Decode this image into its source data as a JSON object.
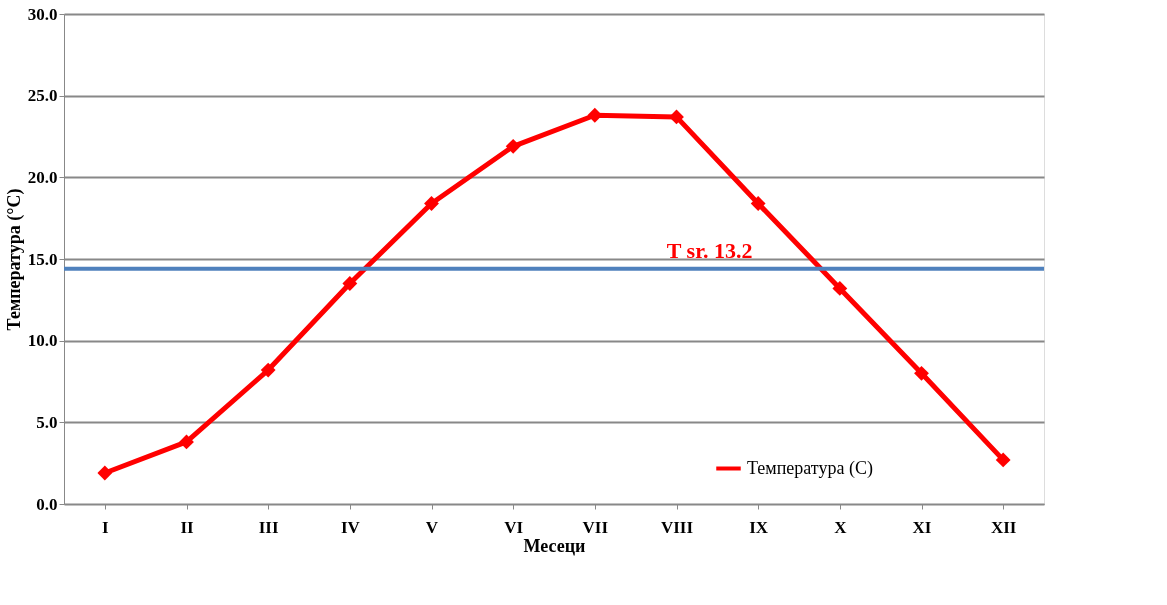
{
  "chart_data": {
    "type": "line",
    "xlabel": "Месеци",
    "ylabel": "Температура (°C)",
    "categories": [
      "I",
      "II",
      "III",
      "IV",
      "V",
      "VI",
      "VII",
      "VIII",
      "IX",
      "X",
      "XI",
      "XII"
    ],
    "series": [
      {
        "name": "Температура (C)",
        "color": "#ff0000",
        "values": [
          1.9,
          3.8,
          8.2,
          13.5,
          18.4,
          21.9,
          23.8,
          23.7,
          18.4,
          13.2,
          8.0,
          2.7
        ]
      }
    ],
    "ylim": [
      0,
      30
    ],
    "yticks": [
      {
        "value": 0,
        "label": "0.0"
      },
      {
        "value": 5,
        "label": "5.0"
      },
      {
        "value": 10,
        "label": "10.0"
      },
      {
        "value": 15,
        "label": "15.0"
      },
      {
        "value": 20,
        "label": "20.0"
      },
      {
        "value": 25,
        "label": "25.0"
      },
      {
        "value": 30,
        "label": "30.0"
      }
    ],
    "ref_lines": [
      {
        "axis": "y",
        "value": 14.4,
        "label": "T sr. 13.2",
        "color": "#4f81bd"
      }
    ],
    "grid": "y",
    "legend": "bottom right",
    "marker": "diamond",
    "line_style": "solid"
  }
}
